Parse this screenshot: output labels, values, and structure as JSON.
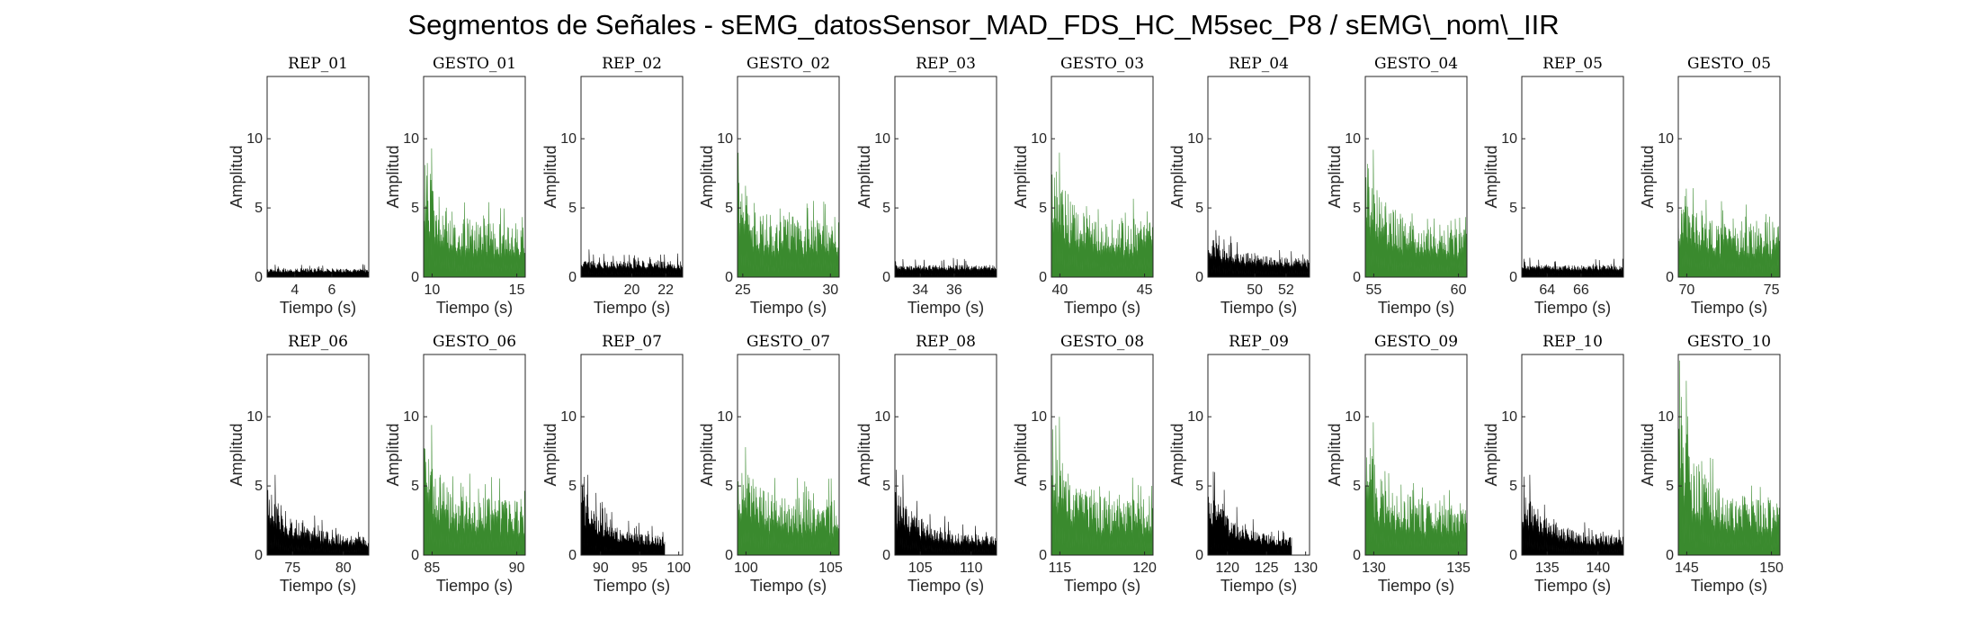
{
  "figure": {
    "title": "Segmentos de Señales - sEMG_datosSensor_MAD_FDS_HC_M5sec_P8 / sEMG\\_nom\\_IIR",
    "colors": {
      "rep": "#000000",
      "gesto": "#3a8a2e",
      "axis": "#262626"
    }
  },
  "chart_data": [
    {
      "type": "bar",
      "title": "REP_01",
      "kind": "rep",
      "xlabel": "Tiempo (s)",
      "ylabel": "Amplitud",
      "xlim": [
        2.5,
        8.0
      ],
      "ylim": [
        0,
        14.5
      ],
      "xticks": [
        4,
        6
      ],
      "yticks": [
        0,
        5,
        10
      ],
      "level": 0.5,
      "peak": 0.9,
      "decay": 0,
      "spread": 0.55
    },
    {
      "type": "bar",
      "title": "GESTO_01",
      "kind": "gesto",
      "xlabel": "Tiempo (s)",
      "ylabel": "Amplitud",
      "xlim": [
        9.5,
        15.5
      ],
      "ylim": [
        0,
        14.5
      ],
      "xticks": [
        10,
        15
      ],
      "yticks": [
        0,
        5,
        10
      ],
      "level": 2.6,
      "peak": 9.3,
      "decay": 0.18,
      "spread": 0.9
    },
    {
      "type": "bar",
      "title": "REP_02",
      "kind": "rep",
      "xlabel": "Tiempo (s)",
      "ylabel": "Amplitud",
      "xlim": [
        17.0,
        23.0
      ],
      "ylim": [
        0,
        14.5
      ],
      "xticks": [
        20,
        22
      ],
      "yticks": [
        0,
        5,
        10
      ],
      "level": 0.9,
      "peak": 2.0,
      "decay": 0,
      "spread": 0.6
    },
    {
      "type": "bar",
      "title": "GESTO_02",
      "kind": "gesto",
      "xlabel": "Tiempo (s)",
      "ylabel": "Amplitud",
      "xlim": [
        24.7,
        30.5
      ],
      "ylim": [
        0,
        14.5
      ],
      "xticks": [
        25,
        30
      ],
      "yticks": [
        0,
        5,
        10
      ],
      "level": 3.0,
      "peak": 6.6,
      "decay": 0.12,
      "spread": 0.9
    },
    {
      "type": "bar",
      "title": "REP_03",
      "kind": "rep",
      "xlabel": "Tiempo (s)",
      "ylabel": "Amplitud",
      "xlim": [
        32.5,
        38.5
      ],
      "ylim": [
        0,
        14.5
      ],
      "xticks": [
        34,
        36
      ],
      "yticks": [
        0,
        5,
        10
      ],
      "level": 0.7,
      "peak": 1.3,
      "decay": 0,
      "spread": 0.5
    },
    {
      "type": "bar",
      "title": "GESTO_03",
      "kind": "gesto",
      "xlabel": "Tiempo (s)",
      "ylabel": "Amplitud",
      "xlim": [
        39.5,
        45.5
      ],
      "ylim": [
        0,
        14.5
      ],
      "xticks": [
        40,
        45
      ],
      "yticks": [
        0,
        5,
        10
      ],
      "level": 2.8,
      "peak": 9.0,
      "decay": 0.18,
      "spread": 0.9
    },
    {
      "type": "bar",
      "title": "REP_04",
      "kind": "rep",
      "xlabel": "Tiempo (s)",
      "ylabel": "Amplitud",
      "xlim": [
        47.0,
        53.5
      ],
      "ylim": [
        0,
        14.5
      ],
      "xticks": [
        50,
        52
      ],
      "yticks": [
        0,
        5,
        10
      ],
      "level": 1.0,
      "peak": 3.4,
      "decay": 0.3,
      "spread": 0.6
    },
    {
      "type": "bar",
      "title": "GESTO_04",
      "kind": "gesto",
      "xlabel": "Tiempo (s)",
      "ylabel": "Amplitud",
      "xlim": [
        54.5,
        60.5
      ],
      "ylim": [
        0,
        14.5
      ],
      "xticks": [
        55,
        60
      ],
      "yticks": [
        0,
        5,
        10
      ],
      "level": 2.4,
      "peak": 9.2,
      "decay": 0.2,
      "spread": 0.9
    },
    {
      "type": "bar",
      "title": "REP_05",
      "kind": "rep",
      "xlabel": "Tiempo (s)",
      "ylabel": "Amplitud",
      "xlim": [
        62.5,
        68.5
      ],
      "ylim": [
        0,
        14.5
      ],
      "xticks": [
        64,
        66
      ],
      "yticks": [
        0,
        5,
        10
      ],
      "level": 0.7,
      "peak": 1.4,
      "decay": 0,
      "spread": 0.5
    },
    {
      "type": "bar",
      "title": "GESTO_05",
      "kind": "gesto",
      "xlabel": "Tiempo (s)",
      "ylabel": "Amplitud",
      "xlim": [
        69.5,
        75.5
      ],
      "ylim": [
        0,
        14.5
      ],
      "xticks": [
        70,
        75
      ],
      "yticks": [
        0,
        5,
        10
      ],
      "level": 2.8,
      "peak": 6.4,
      "decay": 0.12,
      "spread": 0.9
    },
    {
      "type": "bar",
      "title": "REP_06",
      "kind": "rep",
      "xlabel": "Tiempo (s)",
      "ylabel": "Amplitud",
      "xlim": [
        72.5,
        82.5
      ],
      "ylim": [
        0,
        14.5
      ],
      "xticks": [
        75,
        80
      ],
      "yticks": [
        0,
        5,
        10
      ],
      "level": 0.9,
      "peak": 5.8,
      "decay": 0.3,
      "spread": 0.7
    },
    {
      "type": "bar",
      "title": "GESTO_06",
      "kind": "gesto",
      "xlabel": "Tiempo (s)",
      "ylabel": "Amplitud",
      "xlim": [
        84.5,
        90.5
      ],
      "ylim": [
        0,
        14.5
      ],
      "xticks": [
        85,
        90
      ],
      "yticks": [
        0,
        5,
        10
      ],
      "level": 2.8,
      "peak": 9.4,
      "decay": 0.15,
      "spread": 0.9
    },
    {
      "type": "bar",
      "title": "REP_07",
      "kind": "rep",
      "xlabel": "Tiempo (s)",
      "ylabel": "Amplitud",
      "xlim": [
        87.5,
        100.5
      ],
      "ylim": [
        0,
        14.5
      ],
      "xticks": [
        90,
        95,
        100
      ],
      "yticks": [
        0,
        5,
        10
      ],
      "level": 0.9,
      "peak": 5.8,
      "decay": 0.3,
      "spread": 0.7,
      "xend": 98.2
    },
    {
      "type": "bar",
      "title": "GESTO_07",
      "kind": "gesto",
      "xlabel": "Tiempo (s)",
      "ylabel": "Amplitud",
      "xlim": [
        99.5,
        105.5
      ],
      "ylim": [
        0,
        14.5
      ],
      "xticks": [
        100,
        105
      ],
      "yticks": [
        0,
        5,
        10
      ],
      "level": 2.8,
      "peak": 7.8,
      "decay": 0.15,
      "spread": 0.9
    },
    {
      "type": "bar",
      "title": "REP_08",
      "kind": "rep",
      "xlabel": "Tiempo (s)",
      "ylabel": "Amplitud",
      "xlim": [
        102.5,
        112.5
      ],
      "ylim": [
        0,
        14.5
      ],
      "xticks": [
        105,
        110
      ],
      "yticks": [
        0,
        5,
        10
      ],
      "level": 0.9,
      "peak": 5.8,
      "decay": 0.3,
      "spread": 0.7
    },
    {
      "type": "bar",
      "title": "GESTO_08",
      "kind": "gesto",
      "xlabel": "Tiempo (s)",
      "ylabel": "Amplitud",
      "xlim": [
        114.5,
        120.5
      ],
      "ylim": [
        0,
        14.5
      ],
      "xticks": [
        115,
        120
      ],
      "yticks": [
        0,
        5,
        10
      ],
      "level": 2.8,
      "peak": 10.0,
      "decay": 0.15,
      "spread": 0.9
    },
    {
      "type": "bar",
      "title": "REP_09",
      "kind": "rep",
      "xlabel": "Tiempo (s)",
      "ylabel": "Amplitud",
      "xlim": [
        117.5,
        130.5
      ],
      "ylim": [
        0,
        14.5
      ],
      "xticks": [
        120,
        125,
        130
      ],
      "yticks": [
        0,
        5,
        10
      ],
      "level": 0.9,
      "peak": 6.0,
      "decay": 0.3,
      "spread": 0.7,
      "xend": 128.2
    },
    {
      "type": "bar",
      "title": "GESTO_09",
      "kind": "gesto",
      "xlabel": "Tiempo (s)",
      "ylabel": "Amplitud",
      "xlim": [
        129.5,
        135.5
      ],
      "ylim": [
        0,
        14.5
      ],
      "xticks": [
        130,
        135
      ],
      "yticks": [
        0,
        5,
        10
      ],
      "level": 2.8,
      "peak": 9.6,
      "decay": 0.15,
      "spread": 0.9
    },
    {
      "type": "bar",
      "title": "REP_10",
      "kind": "rep",
      "xlabel": "Tiempo (s)",
      "ylabel": "Amplitud",
      "xlim": [
        132.5,
        142.5
      ],
      "ylim": [
        0,
        14.5
      ],
      "xticks": [
        135,
        140
      ],
      "yticks": [
        0,
        5,
        10
      ],
      "level": 0.9,
      "peak": 5.8,
      "decay": 0.3,
      "spread": 0.7
    },
    {
      "type": "bar",
      "title": "GESTO_10",
      "kind": "gesto",
      "xlabel": "Tiempo (s)",
      "ylabel": "Amplitud",
      "xlim": [
        144.5,
        150.5
      ],
      "ylim": [
        0,
        14.5
      ],
      "xticks": [
        145,
        150
      ],
      "yticks": [
        0,
        5,
        10
      ],
      "level": 2.8,
      "peak": 12.6,
      "decay": 0.18,
      "spread": 0.9
    }
  ]
}
